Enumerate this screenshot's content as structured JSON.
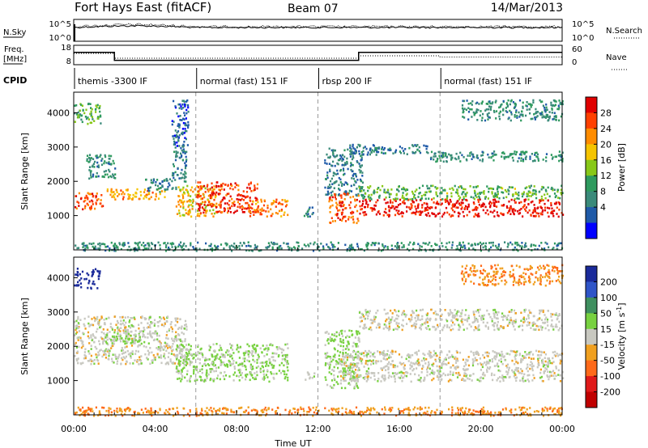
{
  "header": {
    "title": "Fort Hays East (fitACF)",
    "beam": "Beam 07",
    "date": "14/Mar/2013"
  },
  "noise_panel": {
    "left_label": "N.Sky",
    "left_ticks": [
      "10^5",
      "10^0"
    ],
    "right_ticks": [
      "10^5",
      "10^0"
    ],
    "right_label": "N.Search",
    "right_line_style": "dotted"
  },
  "freq_panel": {
    "left_label_1": "Freq.",
    "left_label_2": "[MHz]",
    "left_ticks": [
      "18",
      "8"
    ],
    "right_ticks": [
      "60",
      "0"
    ],
    "right_label": "Nave",
    "right_line_style": "dotted",
    "freq_steps": [
      {
        "t_start": 0.0,
        "t_end": 2.0,
        "mhz": 14.5
      },
      {
        "t_start": 2.0,
        "t_end": 14.0,
        "mhz": 10.0
      },
      {
        "t_start": 14.0,
        "t_end": 24.0,
        "mhz": 14.5
      }
    ]
  },
  "cpid": {
    "label": "CPID",
    "segments": [
      {
        "t_start": 0,
        "text": "themis -3300 IF"
      },
      {
        "t_start": 6,
        "text": "normal (fast) 151 IF"
      },
      {
        "t_start": 12,
        "text": "rbsp 200 IF"
      },
      {
        "t_start": 18,
        "text": "normal (fast) 151 IF"
      }
    ]
  },
  "panels": [
    {
      "parameter": "Power",
      "ylabel": "Slant Range [km]",
      "yticks": [
        "4000",
        "3000",
        "2000",
        "1000"
      ],
      "colorbar_label": "Power [dB]",
      "colorbar_ticks": [
        "28",
        "24",
        "20",
        "16",
        "12",
        "8",
        "4"
      ],
      "colorbar_colors": [
        "#e00000",
        "#ff4000",
        "#ff8c00",
        "#f5c400",
        "#88c818",
        "#2e9a5e",
        "#3a8a7a",
        "#1f5aa8",
        "#0000ff"
      ]
    },
    {
      "parameter": "Velocity",
      "ylabel": "Slant Range [km]",
      "yticks": [
        "4000",
        "3000",
        "2000",
        "1000"
      ],
      "colorbar_label": "Velocity [m s",
      "colorbar_label_sup": "-1",
      "colorbar_label_end": "]",
      "colorbar_ticks": [
        "200",
        "100",
        "50",
        "15",
        "-15",
        "-50",
        "-100",
        "-200"
      ],
      "colorbar_colors": [
        "#1a2a9a",
        "#2f55c8",
        "#3f8f5f",
        "#78d140",
        "#c8c8c0",
        "#f0a020",
        "#ff6a1a",
        "#e01a1a",
        "#c00000"
      ]
    }
  ],
  "x_axis": {
    "label": "Time UT",
    "tick_labels": [
      "00:00",
      "04:00",
      "08:00",
      "12:00",
      "16:00",
      "20:00",
      "00:00"
    ]
  },
  "chart_data": {
    "type": "heatmap",
    "title": "Fort Hays East (fitACF)",
    "subtitle": "Beam 07",
    "date": "14/Mar/2013",
    "xlabel": "Time UT",
    "ylabel": "Slant Range [km]",
    "xlim": [
      0,
      24
    ],
    "ylim": [
      0,
      4600
    ],
    "power_panel": {
      "colorbar_range_db": [
        0,
        32
      ],
      "scatter_regions": [
        {
          "t_start": 0.0,
          "t_end": 1.3,
          "r_min": 3700,
          "r_max": 4300,
          "db": 14
        },
        {
          "t_start": 0.0,
          "t_end": 1.4,
          "r_min": 1200,
          "r_max": 1700,
          "db": 26
        },
        {
          "t_start": 0.6,
          "t_end": 2.0,
          "r_min": 2100,
          "r_max": 2800,
          "db": 10
        },
        {
          "t_start": 1.5,
          "t_end": 4.5,
          "r_min": 1500,
          "r_max": 1800,
          "db": 22
        },
        {
          "t_start": 3.5,
          "t_end": 5.0,
          "r_min": 1700,
          "r_max": 2100,
          "db": 8
        },
        {
          "t_start": 4.8,
          "t_end": 5.5,
          "r_min": 2000,
          "r_max": 3000,
          "db": 8
        },
        {
          "t_start": 4.8,
          "t_end": 5.6,
          "r_min": 3000,
          "r_max": 4400,
          "db": 6
        },
        {
          "t_start": 5.0,
          "t_end": 7.0,
          "r_min": 1000,
          "r_max": 1900,
          "db": 20
        },
        {
          "t_start": 6.0,
          "t_end": 9.0,
          "r_min": 1100,
          "r_max": 2000,
          "db": 28
        },
        {
          "t_start": 8.5,
          "t_end": 10.5,
          "r_min": 1000,
          "r_max": 1500,
          "db": 24
        },
        {
          "t_start": 11.3,
          "t_end": 11.8,
          "r_min": 1000,
          "r_max": 1300,
          "db": 8
        },
        {
          "t_start": 12.3,
          "t_end": 14.2,
          "r_min": 1600,
          "r_max": 3000,
          "db": 8
        },
        {
          "t_start": 12.5,
          "t_end": 14.0,
          "r_min": 800,
          "r_max": 1700,
          "db": 26
        },
        {
          "t_start": 14.0,
          "t_end": 24.0,
          "r_min": 1000,
          "r_max": 1500,
          "db": 30
        },
        {
          "t_start": 14.0,
          "t_end": 24.0,
          "r_min": 1500,
          "r_max": 1900,
          "db": 14
        },
        {
          "t_start": 13.5,
          "t_end": 17.5,
          "r_min": 2800,
          "r_max": 3100,
          "db": 8
        },
        {
          "t_start": 17.5,
          "t_end": 24.0,
          "r_min": 2600,
          "r_max": 2900,
          "db": 10
        },
        {
          "t_start": 19.0,
          "t_end": 24.0,
          "r_min": 3800,
          "r_max": 4400,
          "db": 10
        },
        {
          "t_start": 0.0,
          "t_end": 24.0,
          "r_min": 0,
          "r_max": 250,
          "db": 10
        }
      ]
    },
    "velocity_panel": {
      "colorbar_range_ms": [
        -200,
        200
      ],
      "scatter_regions": [
        {
          "t_start": 0.0,
          "t_end": 1.3,
          "r_min": 3700,
          "r_max": 4300,
          "v": 200
        },
        {
          "t_start": 0.0,
          "t_end": 5.6,
          "r_min": 1500,
          "r_max": 2900,
          "v": 0
        },
        {
          "t_start": 1.5,
          "t_end": 3.5,
          "r_min": 2100,
          "r_max": 2400,
          "v": 40
        },
        {
          "t_start": 5.0,
          "t_end": 10.5,
          "r_min": 1000,
          "r_max": 2100,
          "v": 30
        },
        {
          "t_start": 11.3,
          "t_end": 11.8,
          "r_min": 1000,
          "r_max": 1300,
          "v": 0
        },
        {
          "t_start": 12.3,
          "t_end": 14.0,
          "r_min": 800,
          "r_max": 2500,
          "v": 30
        },
        {
          "t_start": 13.0,
          "t_end": 24.0,
          "r_min": 1000,
          "r_max": 1900,
          "v": 0
        },
        {
          "t_start": 14.0,
          "t_end": 24.0,
          "r_min": 2500,
          "r_max": 3100,
          "v": 0
        },
        {
          "t_start": 19.0,
          "t_end": 24.0,
          "r_min": 3800,
          "r_max": 4400,
          "v": -60
        },
        {
          "t_start": 0.0,
          "t_end": 24.0,
          "r_min": 0,
          "r_max": 250,
          "v": -60
        }
      ]
    }
  }
}
